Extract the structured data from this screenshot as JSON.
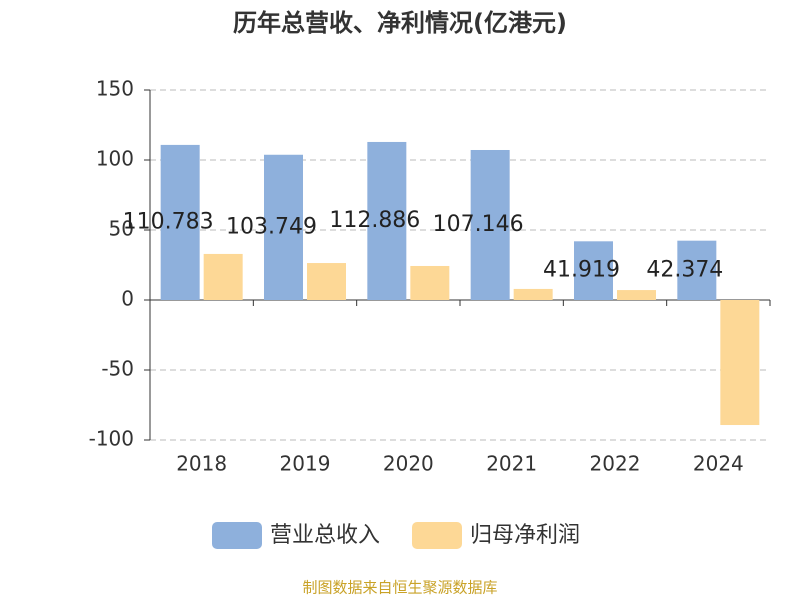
{
  "chart_data": {
    "type": "bar",
    "title": "历年总营收、净利情况(亿港元)",
    "categories": [
      "2018",
      "2019",
      "2020",
      "2021",
      "2022",
      "2024"
    ],
    "series": [
      {
        "name": "营业总收入",
        "color": "#8eb0dc",
        "values": [
          110.783,
          103.749,
          112.886,
          107.146,
          41.919,
          42.374
        ],
        "show_labels": true
      },
      {
        "name": "归母净利润",
        "color": "#fdd896",
        "values": [
          32.9,
          26.4,
          24.3,
          7.9,
          7.1,
          -89.3
        ]
      }
    ],
    "ylim": [
      -100,
      150
    ],
    "yticks": [
      -100,
      -50,
      0,
      50,
      100,
      150
    ],
    "grid": true,
    "legend": "bottom",
    "source": "制图数据来自恒生聚源数据库"
  }
}
